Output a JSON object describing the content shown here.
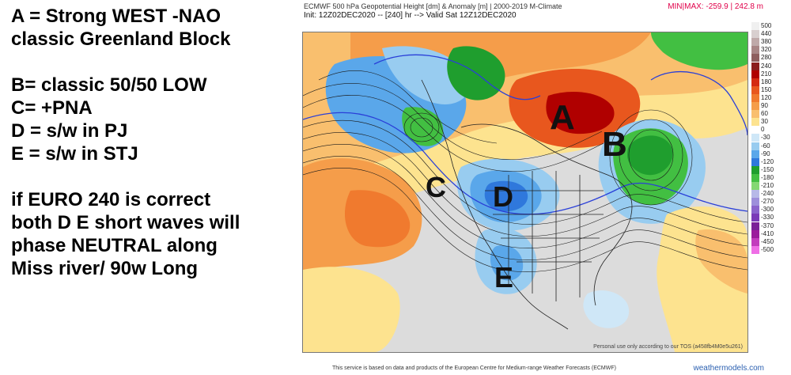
{
  "notes": {
    "line1": "A =  Strong  WEST -NAO",
    "line2": "classic Greenland Block",
    "line3": "B=  classic 50/50 LOW",
    "line4": "C=  +PNA",
    "line5": "D = s/w in  PJ",
    "line6": "E =  s/w in STJ",
    "line7": "if EURO 240 is correct",
    "line8": "both D E  short  waves will",
    "line9": "phase NEUTRAL along",
    "line10": "Miss river/ 90w Long"
  },
  "header": {
    "title": "ECMWF 500 hPa Geopotential Height [dm] & Anomaly [m] | 2000-2019 M-Climate",
    "init": "Init: 12Z02DEC2020 -- [240] hr --> Valid Sat 12Z12DEC2020",
    "minmax": "MIN|MAX: -259.9 | 242.8 m"
  },
  "map": {
    "labels": {
      "A": "A",
      "B": "B",
      "C": "C",
      "D": "D",
      "E": "E"
    },
    "watermark": "Personal use only according to our TOS (a458fb4M0e5u261)"
  },
  "legend": {
    "values": [
      "500",
      "440",
      "380",
      "320",
      "280",
      "240",
      "210",
      "180",
      "150",
      "120",
      "90",
      "60",
      "30",
      "0",
      "-30",
      "-60",
      "-90",
      "-120",
      "-150",
      "-180",
      "-210",
      "-240",
      "-270",
      "-300",
      "-330",
      "-370",
      "-410",
      "-450",
      "-500"
    ],
    "colors": [
      "#f0f0f0",
      "#d8cfcf",
      "#bfa9a9",
      "#a88585",
      "#8e5e5e",
      "#8b1e1e",
      "#b00000",
      "#d42a12",
      "#e8571e",
      "#f07a2e",
      "#f59d4a",
      "#f9bf6e",
      "#fde38f",
      "#ffffff",
      "#cfe7f7",
      "#98ccf0",
      "#5aa7ea",
      "#2f78dc",
      "#1f9e2e",
      "#42bf42",
      "#84d873",
      "#b7b9e8",
      "#9d8fdb",
      "#8a63cc",
      "#7a3ab8",
      "#7a1f98",
      "#9b1c9c",
      "#c23cbd",
      "#ef6fe6"
    ]
  },
  "footer": {
    "text": "This service is based on data and products of the European Centre for Medium-range Weather Forecasts (ECMWF)",
    "site": "weathermodels.com"
  }
}
